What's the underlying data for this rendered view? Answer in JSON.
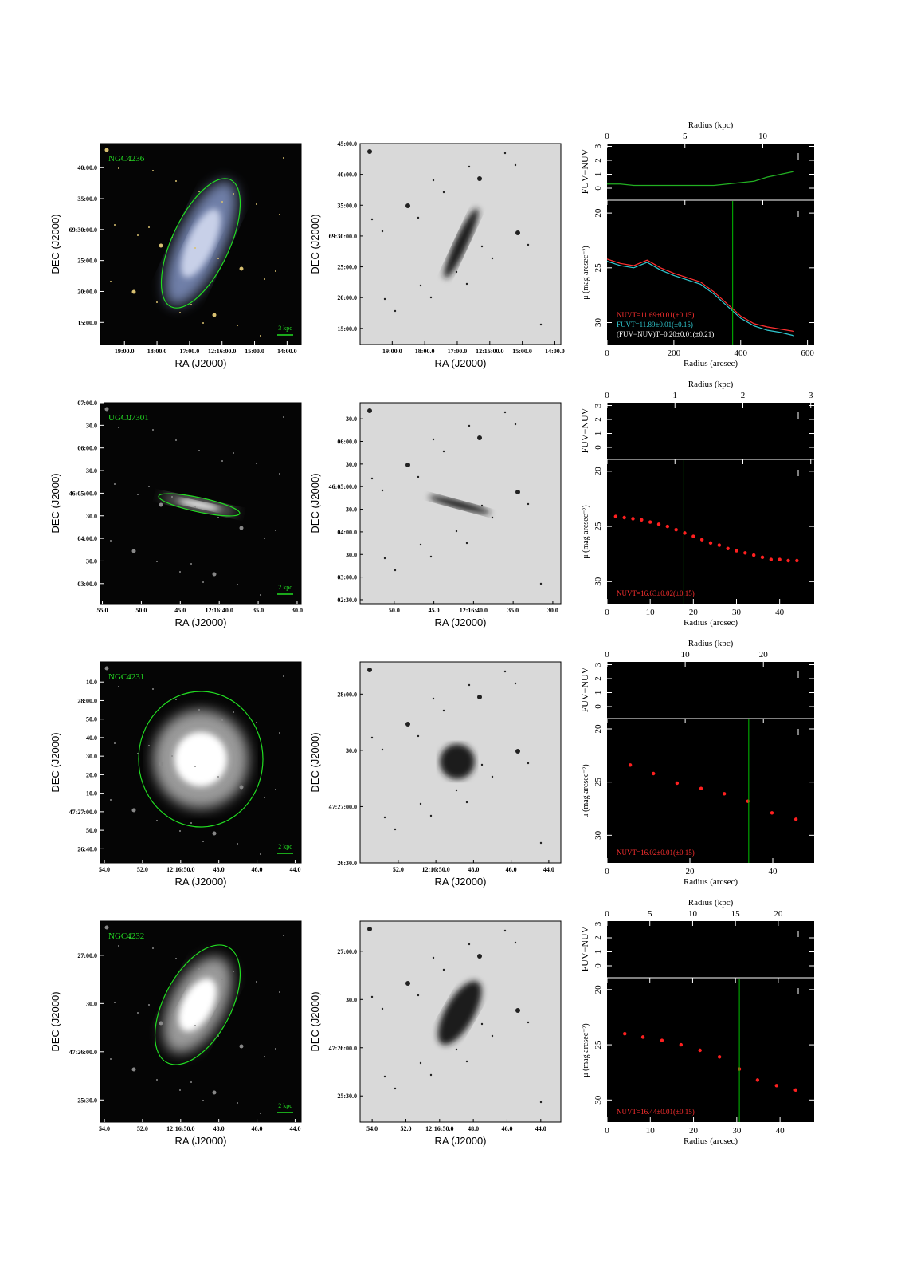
{
  "figure": {
    "rows": [
      {
        "name": "NGC4236",
        "color_image": {
          "xticks": [
            "19:00.0",
            "18:00.0",
            "17:00.0",
            "12:16:00.0",
            "15:00.0",
            "14:00.0"
          ],
          "yticks": [
            "40:00.0",
            "35:00.0",
            "69:30:00.0",
            "25:00.0",
            "20:00.0",
            "15:00.0"
          ],
          "xlabel": "RA (J2000)",
          "ylabel": "DEC (J2000)",
          "scale_bar": "3 kpc"
        },
        "gray_image": {
          "xticks": [
            "19:00.0",
            "18:00.0",
            "17:00.0",
            "12:16:00.0",
            "15:00.0",
            "14:00.0"
          ],
          "yticks": [
            "45:00.0",
            "40:00.0",
            "35:00.0",
            "69:30:00.0",
            "25:00.0",
            "20:00.0",
            "15:00.0"
          ],
          "xlabel": "RA (J2000)",
          "ylabel": "DEC (J2000)"
        },
        "profile": {
          "type": "line",
          "top_axis_label": "Radius (kpc)",
          "x2lim": [
            0,
            13.3
          ],
          "x2ticks": [
            0,
            5,
            10
          ],
          "xlabel": "Radius (arcsec)",
          "xlim": [
            0,
            620
          ],
          "xticks": [
            0,
            200,
            400,
            600
          ],
          "x": [
            0,
            40,
            80,
            120,
            160,
            200,
            240,
            280,
            320,
            360,
            400,
            440,
            480,
            520,
            560
          ],
          "color_panel": {
            "ylabel": "FUV−NUV",
            "ylim": [
              -0.8,
              3.2
            ],
            "yticks": [
              0,
              1,
              2,
              3
            ],
            "series": [
              {
                "color": "#22b022",
                "values": [
                  0.3,
                  0.3,
                  0.2,
                  0.2,
                  0.2,
                  0.2,
                  0.2,
                  0.2,
                  0.2,
                  0.3,
                  0.4,
                  0.5,
                  0.8,
                  1.0,
                  1.2
                ]
              }
            ]
          },
          "sb_panel": {
            "ylabel": "μ (mag arcsec⁻²)",
            "ylim": [
              32,
              18.9
            ],
            "yticks": [
              20,
              25,
              30
            ],
            "series": [
              {
                "color": "#ff3030",
                "values": [
                  24.2,
                  24.6,
                  24.8,
                  24.3,
                  25.0,
                  25.5,
                  25.9,
                  26.3,
                  27.2,
                  28.3,
                  29.4,
                  30.1,
                  30.4,
                  30.6,
                  30.8
                ]
              },
              {
                "color": "#30c8d0",
                "values": [
                  24.4,
                  24.8,
                  25.0,
                  24.5,
                  25.2,
                  25.7,
                  26.1,
                  26.5,
                  27.4,
                  28.5,
                  29.6,
                  30.3,
                  30.7,
                  30.9,
                  31.2
                ]
              }
            ]
          },
          "radius_line": 376,
          "radius_line_color": "#00c000",
          "annotations": [
            {
              "text": "NUVT=11.69±0.01(±0.15)",
              "color": "#ff3030"
            },
            {
              "text": "FUVT=11.89±0.01(±0.15)",
              "color": "#30c8d0"
            },
            {
              "text": "(FUV−NUV)T=0.20±0.01(±0.21)",
              "color": "#ffffff"
            }
          ]
        }
      },
      {
        "name": "UGC07301",
        "color_image": {
          "xticks": [
            "55.0",
            "50.0",
            "45.0",
            "12:16:40.0",
            "35.0",
            "30.0"
          ],
          "yticks": [
            "07:00.0",
            "30.0",
            "06:00.0",
            "30.0",
            "46:05:00.0",
            "30.0",
            "04:00.0",
            "30.0",
            "03:00.0"
          ],
          "xlabel": "RA (J2000)",
          "ylabel": "DEC (J2000)",
          "scale_bar": "2 kpc"
        },
        "gray_image": {
          "xticks": [
            "50.0",
            "45.0",
            "12:16:40.0",
            "35.0",
            "30.0"
          ],
          "yticks": [
            "30.0",
            "06:00.0",
            "30.0",
            "46:05:00.0",
            "30.0",
            "04:00.0",
            "30.0",
            "03:00.0",
            "02:30.0"
          ],
          "xlabel": "RA (J2000)",
          "ylabel": "DEC (J2000)"
        },
        "profile": {
          "type": "scatter",
          "top_axis_label": "Radius (kpc)",
          "x2lim": [
            0,
            3.05
          ],
          "x2ticks": [
            0,
            1,
            2,
            3
          ],
          "xlabel": "Radius (arcsec)",
          "xlim": [
            0,
            48
          ],
          "xticks": [
            0,
            10,
            20,
            30,
            40
          ],
          "x": [
            2,
            4,
            6,
            8,
            10,
            12,
            14,
            16,
            18,
            20,
            22,
            24,
            26,
            28,
            30,
            32,
            34,
            36,
            38,
            40,
            42,
            44
          ],
          "color_panel": {
            "ylabel": "FUV−NUV",
            "ylim": [
              -0.8,
              3.2
            ],
            "yticks": [
              0,
              1,
              2,
              3
            ],
            "series": []
          },
          "sb_panel": {
            "ylabel": "μ (mag arcsec⁻²)",
            "ylim": [
              32,
              19
            ],
            "yticks": [
              20,
              25,
              30
            ],
            "series": [
              {
                "color": "#ff2020",
                "values": [
                  24.1,
                  24.2,
                  24.3,
                  24.4,
                  24.6,
                  24.8,
                  25.0,
                  25.3,
                  25.6,
                  25.9,
                  26.2,
                  26.5,
                  26.7,
                  27.0,
                  27.2,
                  27.4,
                  27.6,
                  27.8,
                  28.0,
                  28.0,
                  28.1,
                  28.1
                ]
              }
            ]
          },
          "radius_line": 17.8,
          "radius_line_color": "#00c000",
          "annotations": [
            {
              "text": "NUVT=16.63±0.02(±0.15)",
              "color": "#ff3030"
            }
          ]
        }
      },
      {
        "name": "NGC4231",
        "color_image": {
          "xticks": [
            "54.0",
            "52.0",
            "12:16:50.0",
            "48.0",
            "46.0",
            "44.0"
          ],
          "yticks": [
            "10.0",
            "28:00.0",
            "50.0",
            "40.0",
            "30.0",
            "20.0",
            "10.0",
            "47:27:00.0",
            "50.0",
            "26:40.0"
          ],
          "xlabel": "RA (J2000)",
          "ylabel": "DEC (J2000)",
          "scale_bar": "2 kpc"
        },
        "gray_image": {
          "xticks": [
            "52.0",
            "12:16:50.0",
            "48.0",
            "46.0",
            "44.0"
          ],
          "yticks": [
            "28:00.0",
            "30.0",
            "47:27:00.0",
            "26:30.0"
          ],
          "xlabel": "RA (J2000)",
          "ylabel": "DEC (J2000)"
        },
        "profile": {
          "type": "scatter",
          "top_axis_label": "Radius (kpc)",
          "x2lim": [
            0,
            26.5
          ],
          "x2ticks": [
            0,
            10,
            20
          ],
          "xlabel": "Radius (arcsec)",
          "xlim": [
            0,
            50
          ],
          "xticks": [
            0,
            20,
            40
          ],
          "x": [
            5.6,
            11.2,
            16.9,
            22.7,
            28.3,
            34.0,
            39.8,
            45.6
          ],
          "color_panel": {
            "ylabel": "FUV−NUV",
            "ylim": [
              -0.8,
              3.2
            ],
            "yticks": [
              0,
              1,
              2,
              3
            ],
            "series": []
          },
          "sb_panel": {
            "ylabel": "μ (mag arcsec⁻²)",
            "ylim": [
              32.6,
              19.1
            ],
            "yticks": [
              20,
              25,
              30
            ],
            "series": [
              {
                "color": "#ff2020",
                "values": [
                  23.4,
                  24.2,
                  25.1,
                  25.6,
                  26.1,
                  26.8,
                  27.9,
                  28.5
                ]
              }
            ]
          },
          "radius_line": 34.2,
          "radius_line_color": "#00c000",
          "annotations": [
            {
              "text": "NUVT=16.02±0.01(±0.15)",
              "color": "#ff3030"
            }
          ]
        }
      },
      {
        "name": "NGC4232",
        "color_image": {
          "xticks": [
            "54.0",
            "52.0",
            "12:16:50.0",
            "48.0",
            "46.0",
            "44.0"
          ],
          "yticks": [
            "27:00.0",
            "30.0",
            "47:26:00.0",
            "25:30.0"
          ],
          "xlabel": "RA (J2000)",
          "ylabel": "DEC (J2000)",
          "scale_bar": "2 kpc"
        },
        "gray_image": {
          "xticks": [
            "54.0",
            "52.0",
            "12:16:50.0",
            "48.0",
            "46.0",
            "44.0"
          ],
          "yticks": [
            "27:00.0",
            "30.0",
            "47:26:00.0",
            "25:30.0"
          ],
          "xlabel": "RA (J2000)",
          "ylabel": "DEC (J2000)"
        },
        "profile": {
          "type": "scatter",
          "top_axis_label": "Radius (kpc)",
          "x2lim": [
            0,
            24.2
          ],
          "x2ticks": [
            0,
            5,
            10,
            15,
            20
          ],
          "xlabel": "Radius (arcsec)",
          "xlim": [
            0,
            47.9
          ],
          "xticks": [
            0,
            10,
            20,
            30,
            40
          ],
          "x": [
            4.1,
            8.3,
            12.7,
            17.1,
            21.5,
            26.0,
            30.6,
            34.8,
            39.2,
            43.6
          ],
          "color_panel": {
            "ylabel": "FUV−NUV",
            "ylim": [
              -0.8,
              3.2
            ],
            "yticks": [
              0,
              1,
              2,
              3
            ],
            "series": []
          },
          "sb_panel": {
            "ylabel": "μ (mag arcsec⁻²)",
            "ylim": [
              32,
              19
            ],
            "yticks": [
              20,
              25,
              30
            ],
            "series": [
              {
                "color": "#ff2020",
                "values": [
                  24.0,
                  24.3,
                  24.6,
                  25.0,
                  25.5,
                  26.1,
                  27.2,
                  28.2,
                  28.7,
                  29.1
                ]
              }
            ]
          },
          "radius_line": 30.6,
          "radius_line_color": "#00c000",
          "annotations": [
            {
              "text": "NUVT=16.44±0.01(±0.15)",
              "color": "#ff3030"
            }
          ]
        }
      }
    ]
  }
}
